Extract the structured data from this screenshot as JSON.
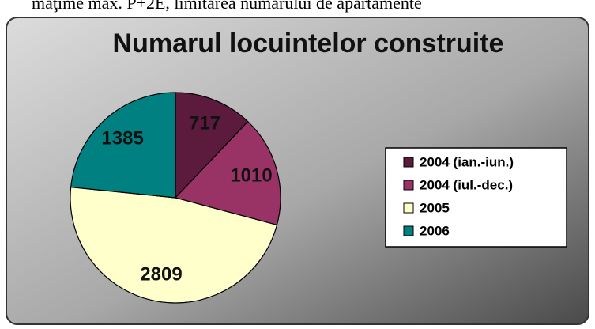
{
  "doc_text": "maţime max. P+2E, limitarea numărului de apartamente",
  "chart_data": {
    "type": "pie",
    "title": "Numarul locuintelor construite",
    "categories": [
      "2004 (ian.-iun.)",
      "2004 (iul.-dec.)",
      "2005",
      "2006"
    ],
    "values": [
      717,
      1010,
      2809,
      1385
    ],
    "colors": [
      "#5c1a3c",
      "#993366",
      "#ffffcc",
      "#008080"
    ],
    "legend": "right"
  }
}
